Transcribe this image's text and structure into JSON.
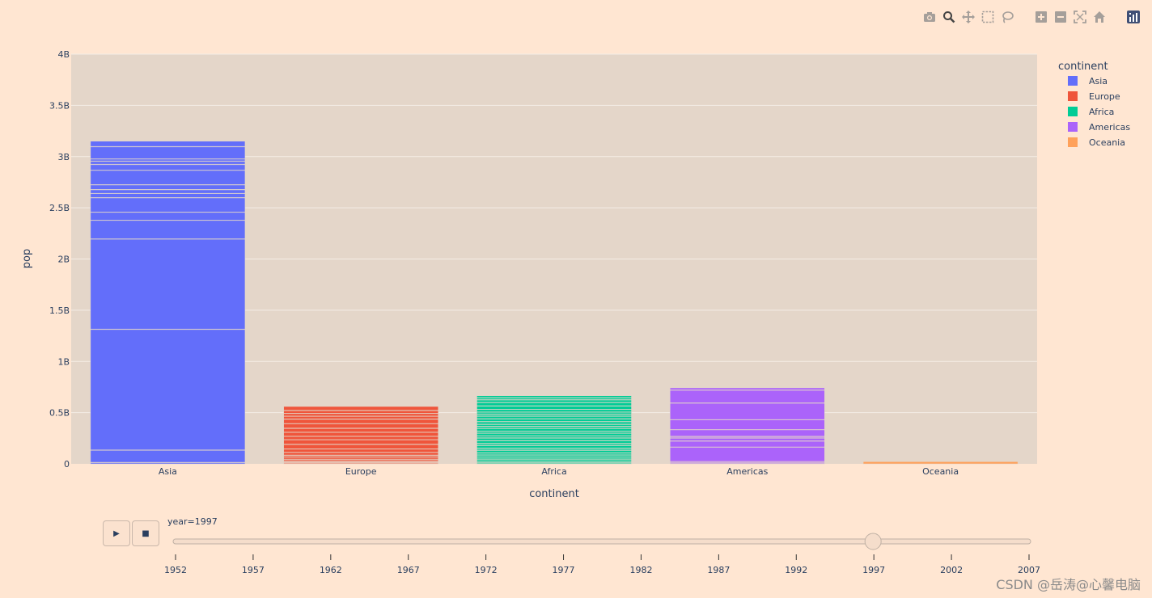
{
  "modebar": {
    "buttons": [
      "camera-icon",
      "zoom-icon",
      "pan-icon",
      "box-select-icon",
      "lasso-icon",
      "zoom-in-icon",
      "zoom-out-icon",
      "autoscale-icon",
      "home-icon",
      "plotly-logo-icon"
    ]
  },
  "chart_data": {
    "type": "bar",
    "barmode": "stack",
    "title": "",
    "xlabel": "continent",
    "ylabel": "pop",
    "categories": [
      "Asia",
      "Europe",
      "Africa",
      "Americas",
      "Oceania"
    ],
    "values": [
      3150000000,
      560000000,
      665000000,
      742000000,
      21000000
    ],
    "ylim": [
      0,
      4000000000
    ],
    "yticks": [
      0,
      500000000,
      1000000000,
      1500000000,
      2000000000,
      2500000000,
      3000000000,
      3500000000,
      4000000000
    ],
    "ytick_labels": [
      "0",
      "0.5B",
      "1B",
      "1.5B",
      "2B",
      "2.5B",
      "3B",
      "3.5B",
      "4B"
    ],
    "grid": true,
    "legend": {
      "title": "continent",
      "placement": "top-right",
      "entries": [
        "Asia",
        "Europe",
        "Africa",
        "Americas",
        "Oceania"
      ]
    },
    "colors": {
      "Asia": "#636efa",
      "Europe": "#ef553b",
      "Africa": "#00cc96",
      "Americas": "#ab63fa",
      "Oceania": "#ffa15a"
    },
    "segment_boundaries": {
      "Asia": [
        0.004,
        0.0425,
        0.417,
        0.697,
        0.755,
        0.78,
        0.825,
        0.838,
        0.85,
        0.865,
        0.91,
        0.928,
        0.938,
        0.945,
        0.983
      ],
      "Europe": [
        0.015,
        0.03,
        0.05,
        0.08,
        0.12,
        0.15,
        0.2,
        0.26,
        0.34,
        0.42,
        0.48,
        0.55,
        0.62,
        0.7,
        0.78,
        0.83,
        0.88,
        0.93
      ],
      "Africa": [
        0.015,
        0.04,
        0.07,
        0.1,
        0.13,
        0.16,
        0.2,
        0.23,
        0.27,
        0.3,
        0.34,
        0.38,
        0.41,
        0.45,
        0.48,
        0.52,
        0.55,
        0.58,
        0.62,
        0.66,
        0.7,
        0.73,
        0.76,
        0.8,
        0.85,
        0.9,
        0.94,
        0.97
      ],
      "Americas": [
        0.012,
        0.03,
        0.22,
        0.3,
        0.34,
        0.36,
        0.45,
        0.58,
        0.8,
        0.97
      ],
      "Oceania": []
    }
  },
  "slider": {
    "label": "year=1997",
    "current": "1997",
    "steps": [
      "1952",
      "1957",
      "1962",
      "1967",
      "1972",
      "1977",
      "1982",
      "1987",
      "1992",
      "1997",
      "2002",
      "2007"
    ]
  },
  "animation": {
    "play_icon": "▶",
    "stop_icon": "■"
  },
  "watermark": "CSDN @岳涛@心馨电脑"
}
